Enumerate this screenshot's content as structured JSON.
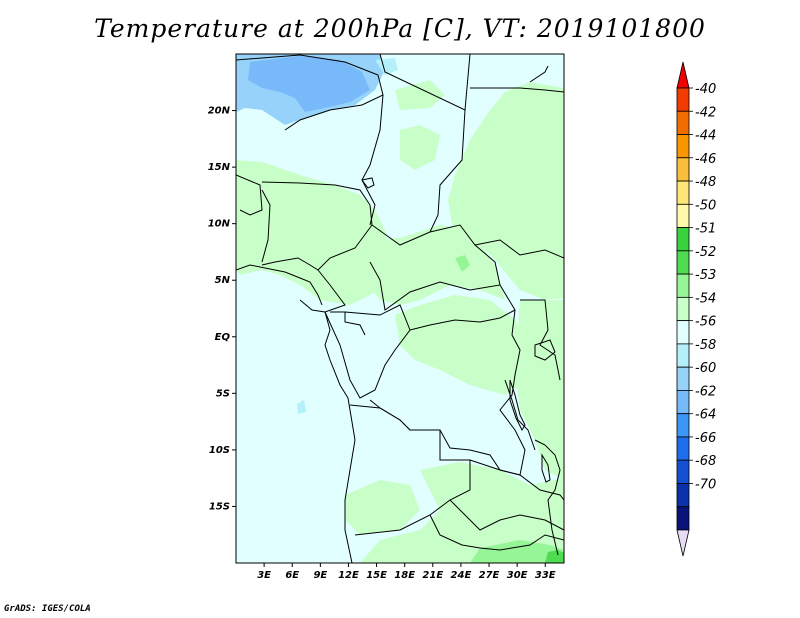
{
  "title": "Temperature at 200hPa [C], VT: 2019101800",
  "credit": "GrADS: IGES/COLA",
  "map": {
    "lat_range": [
      -20,
      25
    ],
    "lon_range": [
      0,
      35
    ],
    "lat_ticks": [
      {
        "value": 20,
        "label": "20N"
      },
      {
        "value": 15,
        "label": "15N"
      },
      {
        "value": 10,
        "label": "10N"
      },
      {
        "value": 5,
        "label": "5N"
      },
      {
        "value": 0,
        "label": "EQ"
      },
      {
        "value": -5,
        "label": "5S"
      },
      {
        "value": -10,
        "label": "10S"
      },
      {
        "value": -15,
        "label": "15S"
      }
    ],
    "lon_ticks": [
      {
        "value": 3,
        "label": "3E"
      },
      {
        "value": 6,
        "label": "6E"
      },
      {
        "value": 9,
        "label": "9E"
      },
      {
        "value": 12,
        "label": "12E"
      },
      {
        "value": 15,
        "label": "15E"
      },
      {
        "value": 18,
        "label": "18E"
      },
      {
        "value": 21,
        "label": "21E"
      },
      {
        "value": 24,
        "label": "24E"
      },
      {
        "value": 27,
        "label": "27E"
      },
      {
        "value": 30,
        "label": "30E"
      },
      {
        "value": 33,
        "label": "33E"
      }
    ],
    "colors": {
      "background": "#e1ffff",
      "band_minus54": "#c8ffc8",
      "band_minus53": "#96f596",
      "band_minus52": "#50dc50",
      "band_minus56": "#b4f0fa",
      "band_minus58": "#96d2fa",
      "band_minus60": "#78b9fa",
      "border": "#000000"
    }
  },
  "colorbar": {
    "labels": [
      "-40",
      "-42",
      "-44",
      "-46",
      "-48",
      "-50",
      "-51",
      "-52",
      "-53",
      "-54",
      "-56",
      "-58",
      "-60",
      "-62",
      "-64",
      "-66",
      "-68",
      "-70"
    ],
    "colors": [
      "#f00000",
      "#f03c00",
      "#f06e00",
      "#fa9600",
      "#fabe3c",
      "#ffe678",
      "#fffaaa",
      "#37d23c",
      "#50dc50",
      "#96f596",
      "#c8ffc8",
      "#e1ffff",
      "#b4f0fa",
      "#96d2fa",
      "#78b9fa",
      "#3c96f5",
      "#1e6eeb",
      "#1450d2",
      "#0a32aa",
      "#0a1478",
      "#e6dcf5"
    ]
  }
}
